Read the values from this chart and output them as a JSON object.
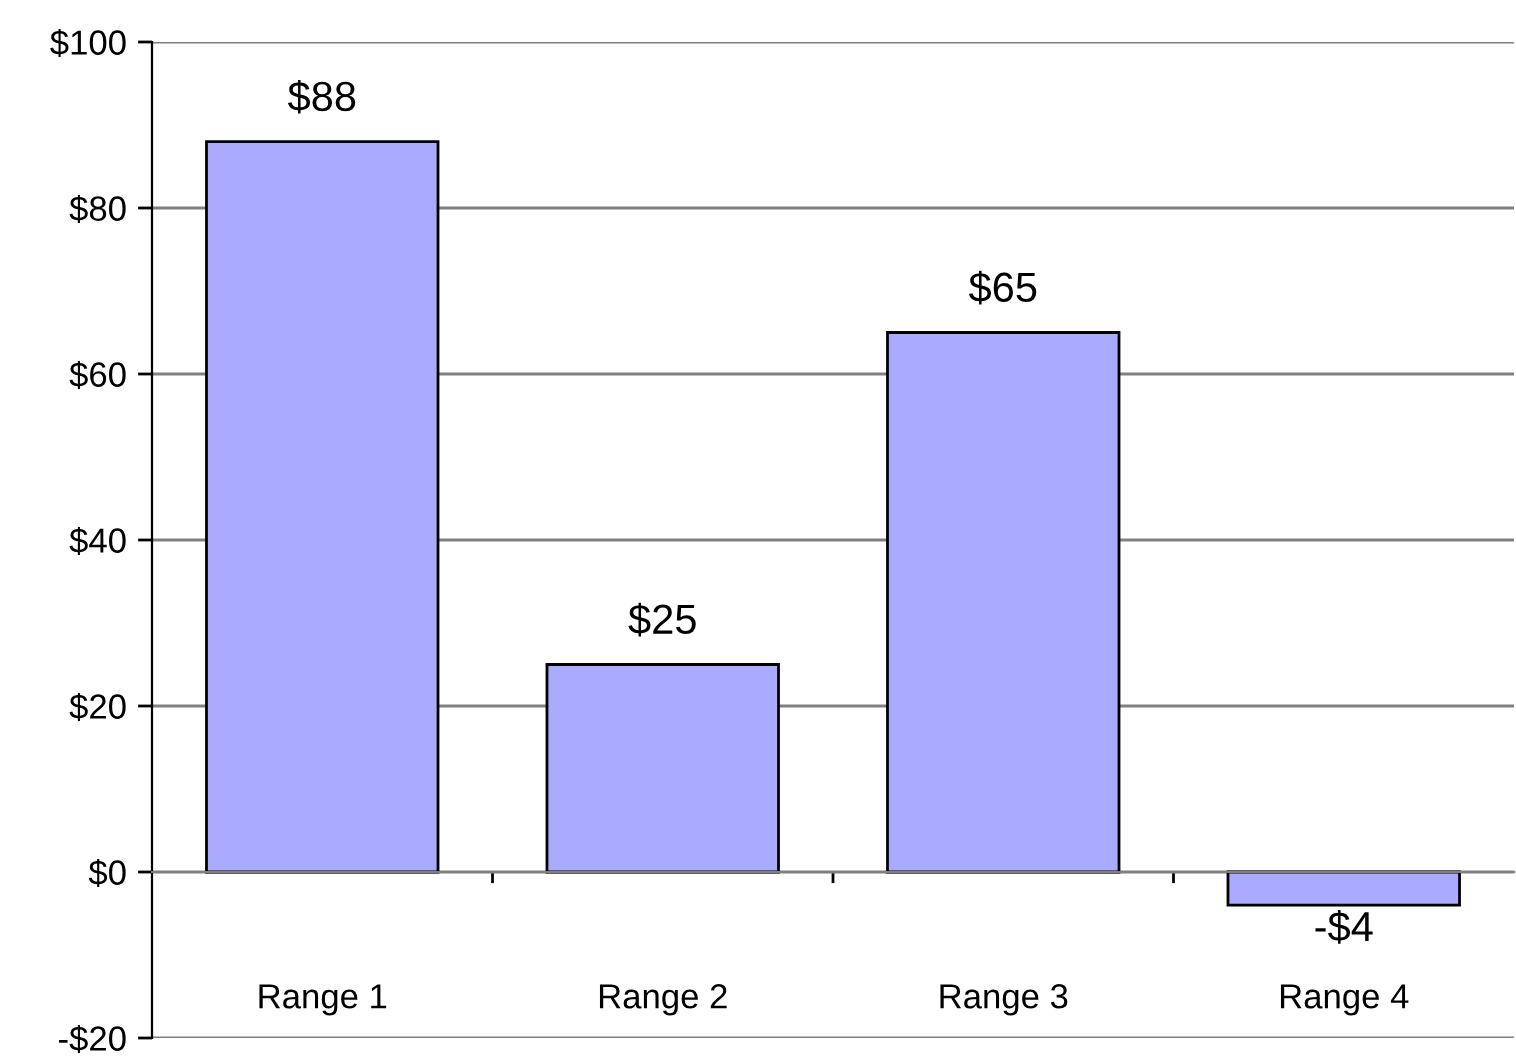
{
  "chart_data": {
    "type": "bar",
    "categories": [
      "Range 1",
      "Range 2",
      "Range 3",
      "Range 4"
    ],
    "values": [
      88,
      25,
      65,
      -4
    ],
    "value_labels": [
      "$88",
      "$25",
      "$65",
      "-$4"
    ],
    "color": "#aaaaff",
    "ylim": [
      -20,
      100
    ],
    "yticks": [
      {
        "value": -20,
        "label": "-$20"
      },
      {
        "value": 0,
        "label": "$0"
      },
      {
        "value": 20,
        "label": "$20"
      },
      {
        "value": 40,
        "label": "$40"
      },
      {
        "value": 60,
        "label": "$60"
      },
      {
        "value": 80,
        "label": "$80"
      },
      {
        "value": 100,
        "label": "$100"
      }
    ],
    "grid": "y"
  }
}
